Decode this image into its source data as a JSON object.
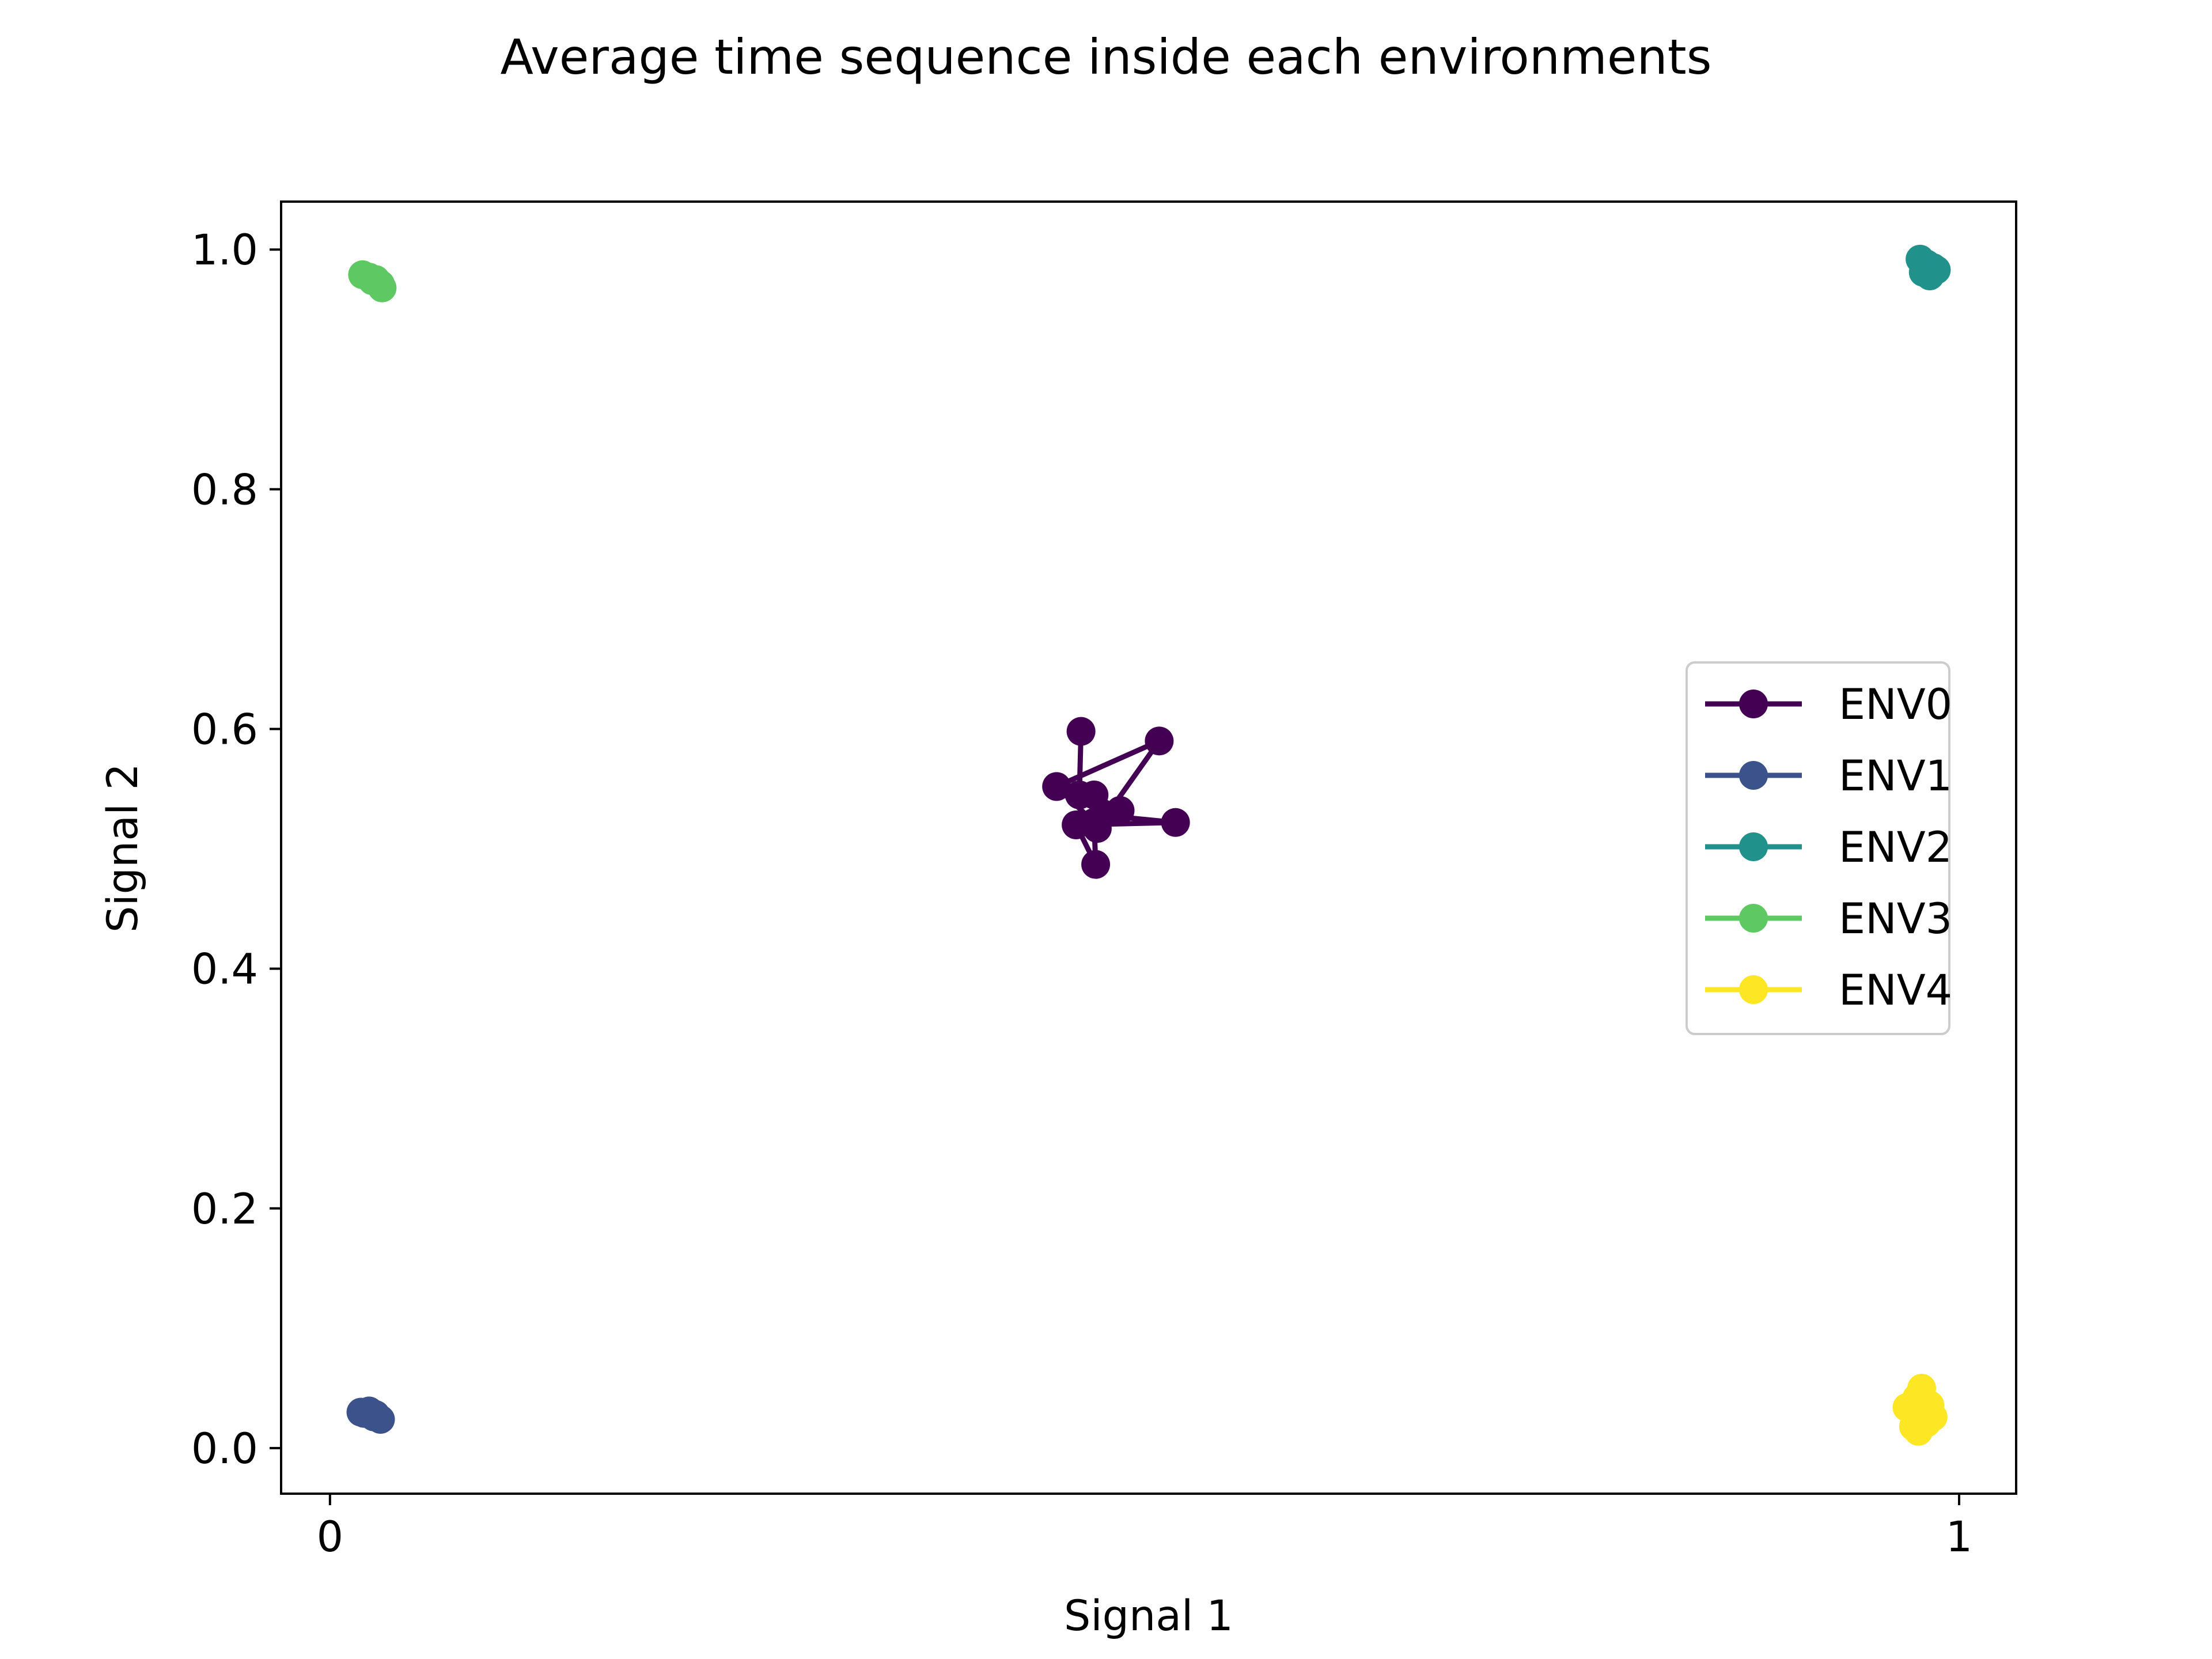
{
  "chart_data": {
    "type": "line",
    "title": "Average time sequence inside each environments",
    "xlabel": "Signal 1",
    "ylabel": "Signal 2",
    "xlim": [
      -0.03,
      1.035
    ],
    "ylim": [
      -0.038,
      1.04
    ],
    "xticks": [
      0,
      1
    ],
    "xtick_labels": [
      "0",
      "1"
    ],
    "yticks": [
      0.0,
      0.2,
      0.4,
      0.6,
      0.8,
      1.0
    ],
    "ytick_labels": [
      "0.0",
      "0.2",
      "0.4",
      "0.6",
      "0.8",
      "1.0"
    ],
    "grid": false,
    "legend_position": "center-right",
    "series": [
      {
        "name": "ENV0",
        "color": "#440154",
        "x": [
          0.461,
          0.46,
          0.469,
          0.485,
          0.471,
          0.509,
          0.446,
          0.469,
          0.47,
          0.458,
          0.519,
          0.474
        ],
        "y": [
          0.598,
          0.545,
          0.545,
          0.532,
          0.517,
          0.59,
          0.552,
          0.522,
          0.487,
          0.52,
          0.522,
          0.528
        ]
      },
      {
        "name": "ENV1",
        "color": "#3b528b",
        "x": [
          0.019,
          0.024,
          0.027,
          0.031,
          0.028,
          0.021
        ],
        "y": [
          0.03,
          0.031,
          0.026,
          0.024,
          0.028,
          0.029
        ]
      },
      {
        "name": "ENV2",
        "color": "#21918c",
        "x": [
          0.976,
          0.98,
          0.984,
          0.986,
          0.978,
          0.982
        ],
        "y": [
          0.992,
          0.988,
          0.985,
          0.983,
          0.981,
          0.978
        ]
      },
      {
        "name": "ENV3",
        "color": "#5ec962",
        "x": [
          0.02,
          0.024,
          0.028,
          0.031,
          0.032,
          0.026
        ],
        "y": [
          0.979,
          0.977,
          0.975,
          0.971,
          0.968,
          0.974
        ]
      },
      {
        "name": "ENV4",
        "color": "#fde725",
        "x": [
          0.971,
          0.977,
          0.982,
          0.98,
          0.975,
          0.968,
          0.974,
          0.984,
          0.972
        ],
        "y": [
          0.031,
          0.05,
          0.036,
          0.021,
          0.014,
          0.034,
          0.042,
          0.026,
          0.018
        ]
      }
    ]
  }
}
